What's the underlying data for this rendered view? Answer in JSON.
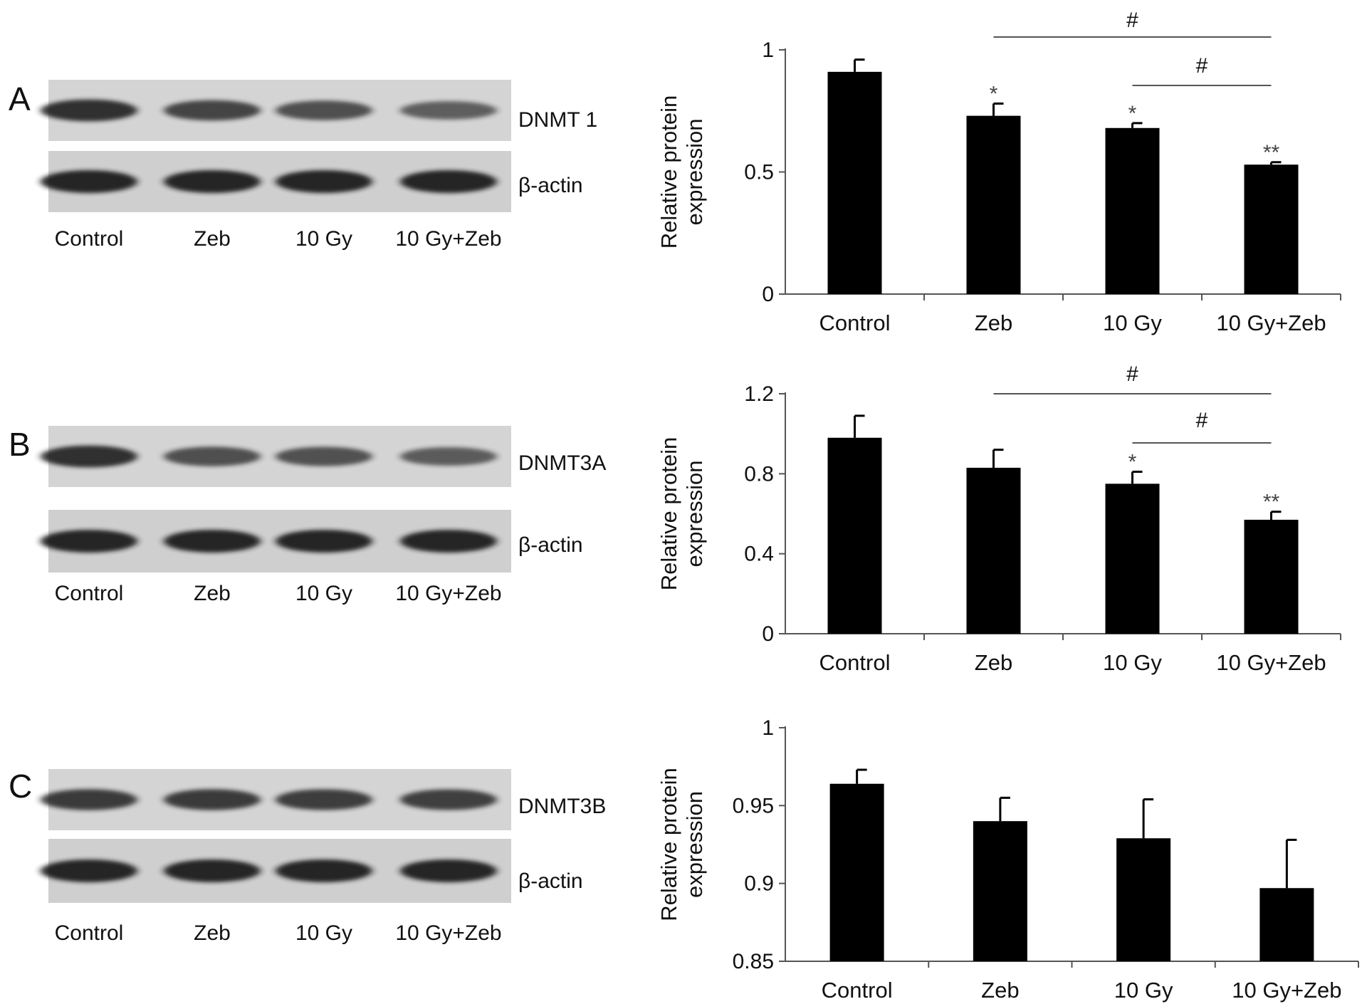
{
  "lanes": [
    "Control",
    "Zeb",
    "10 Gy",
    "10 Gy+Zeb"
  ],
  "blot_color": "#1a1a1a",
  "panels": [
    {
      "panel_label": "A",
      "target": "DNMT 1",
      "loading_control": "β-actin",
      "band_intensity": [
        0.9,
        0.72,
        0.62,
        0.48
      ],
      "loading_intensity": [
        1,
        1,
        1,
        1
      ]
    },
    {
      "panel_label": "B",
      "target": "DNMT3A",
      "loading_control": "β-actin",
      "band_intensity": [
        0.9,
        0.62,
        0.6,
        0.5
      ],
      "loading_intensity": [
        1,
        1,
        1,
        1
      ]
    },
    {
      "panel_label": "C",
      "target": "DNMT3B",
      "loading_control": "β-actin",
      "band_intensity": [
        0.8,
        0.8,
        0.78,
        0.76
      ],
      "loading_intensity": [
        1,
        1,
        1,
        1
      ]
    }
  ],
  "chart_data": [
    {
      "type": "bar",
      "categories": [
        "Control",
        "Zeb",
        "10 Gy",
        "10 Gy+Zeb"
      ],
      "values": [
        0.91,
        0.73,
        0.68,
        0.53
      ],
      "errors": [
        0.05,
        0.05,
        0.02,
        0.01
      ],
      "markers": [
        "",
        "*",
        "*",
        "**"
      ],
      "ylabel": [
        "Relative protein",
        "expression"
      ],
      "ylim": [
        0,
        1
      ],
      "yticks": [
        0,
        0.5,
        1
      ],
      "ytick_labels": [
        "0",
        "0.5",
        "1"
      ],
      "brackets": [
        {
          "from": "Zeb",
          "to": "10 Gy+Zeb",
          "label": "#"
        },
        {
          "from": "10 Gy",
          "to": "10 Gy+Zeb",
          "label": "#"
        }
      ],
      "bar_color": "#000000",
      "grid": false
    },
    {
      "type": "bar",
      "categories": [
        "Control",
        "Zeb",
        "10 Gy",
        "10 Gy+Zeb"
      ],
      "values": [
        0.98,
        0.83,
        0.75,
        0.57
      ],
      "errors": [
        0.11,
        0.09,
        0.06,
        0.04
      ],
      "markers": [
        "",
        "",
        "*",
        "**"
      ],
      "ylabel": [
        "Relative protein",
        "expression"
      ],
      "ylim": [
        0,
        1.2
      ],
      "yticks": [
        0,
        0.4,
        0.8,
        1.2
      ],
      "ytick_labels": [
        "0",
        "0.4",
        "0.8",
        "1.2"
      ],
      "brackets": [
        {
          "from": "Zeb",
          "to": "10 Gy+Zeb",
          "label": "#"
        },
        {
          "from": "10 Gy",
          "to": "10 Gy+Zeb",
          "label": "#"
        }
      ],
      "bar_color": "#000000",
      "grid": false
    },
    {
      "type": "bar",
      "categories": [
        "Control",
        "Zeb",
        "10 Gy",
        "10 Gy+Zeb"
      ],
      "values": [
        0.964,
        0.94,
        0.929,
        0.897
      ],
      "errors": [
        0.009,
        0.015,
        0.025,
        0.031
      ],
      "markers": [
        "",
        "",
        "",
        ""
      ],
      "ylabel": [
        "Relative protein",
        "expression"
      ],
      "ylim": [
        0.85,
        1
      ],
      "yticks": [
        0.85,
        0.9,
        0.95,
        1
      ],
      "ytick_labels": [
        "0.85",
        "0.9",
        "0.95",
        "1"
      ],
      "brackets": [],
      "bar_color": "#000000",
      "grid": false
    }
  ]
}
